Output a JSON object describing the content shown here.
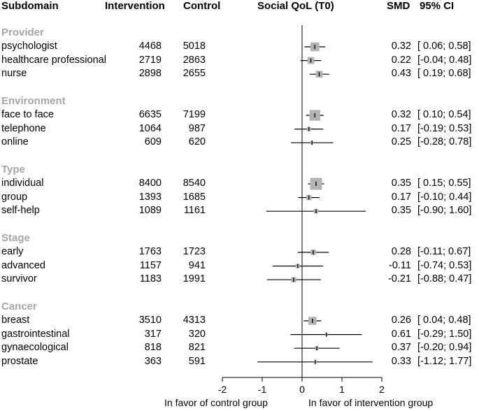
{
  "chart_data": {
    "type": "forest",
    "headers": {
      "subdomain": "Subdomain",
      "intervention": "Intervention",
      "control": "Control",
      "plot": "Social QoL (T0)",
      "smd": "SMD",
      "ci": "95% CI"
    },
    "xlim": [
      -2,
      2
    ],
    "ticks": [
      "-2",
      "-1",
      "0",
      "1",
      "2"
    ],
    "favor_left": "In favor of control group",
    "favor_right": "In favor of intervention group",
    "groups": [
      {
        "name": "Provider",
        "rows": [
          {
            "label": "psychologist",
            "intervention": "4468",
            "control": "5018",
            "smd": 0.32,
            "lo": 0.06,
            "hi": 0.58,
            "smd_text": "0.32",
            "ci_text": "[ 0.06; 0.58]"
          },
          {
            "label": "healthcare professional",
            "intervention": "2719",
            "control": "2863",
            "smd": 0.22,
            "lo": -0.04,
            "hi": 0.48,
            "smd_text": "0.22",
            "ci_text": "[-0.04; 0.48]"
          },
          {
            "label": "nurse",
            "intervention": "2898",
            "control": "2655",
            "smd": 0.43,
            "lo": 0.19,
            "hi": 0.68,
            "smd_text": "0.43",
            "ci_text": "[ 0.19; 0.68]"
          }
        ]
      },
      {
        "name": "Environment",
        "rows": [
          {
            "label": "face to face",
            "intervention": "6635",
            "control": "7199",
            "smd": 0.32,
            "lo": 0.1,
            "hi": 0.54,
            "smd_text": "0.32",
            "ci_text": "[ 0.10; 0.54]"
          },
          {
            "label": "telephone",
            "intervention": "1064",
            "control": "987",
            "smd": 0.17,
            "lo": -0.19,
            "hi": 0.53,
            "smd_text": "0.17",
            "ci_text": "[-0.19; 0.53]"
          },
          {
            "label": "online",
            "intervention": "609",
            "control": "620",
            "smd": 0.25,
            "lo": -0.28,
            "hi": 0.78,
            "smd_text": "0.25",
            "ci_text": "[-0.28; 0.78]"
          }
        ]
      },
      {
        "name": "Type",
        "rows": [
          {
            "label": "individual",
            "intervention": "8400",
            "control": "8540",
            "smd": 0.35,
            "lo": 0.15,
            "hi": 0.55,
            "smd_text": "0.35",
            "ci_text": "[ 0.15; 0.55]"
          },
          {
            "label": "group",
            "intervention": "1393",
            "control": "1685",
            "smd": 0.17,
            "lo": -0.1,
            "hi": 0.44,
            "smd_text": "0.17",
            "ci_text": "[-0.10; 0.44]"
          },
          {
            "label": "self-help",
            "intervention": "1089",
            "control": "1161",
            "smd": 0.35,
            "lo": -0.9,
            "hi": 1.6,
            "smd_text": "0.35",
            "ci_text": "[-0.90; 1.60]"
          }
        ]
      },
      {
        "name": "Stage",
        "rows": [
          {
            "label": "early",
            "intervention": "1763",
            "control": "1723",
            "smd": 0.28,
            "lo": -0.11,
            "hi": 0.67,
            "smd_text": "0.28",
            "ci_text": "[-0.11; 0.67]"
          },
          {
            "label": "advanced",
            "intervention": "1157",
            "control": "941",
            "smd": -0.11,
            "lo": -0.74,
            "hi": 0.53,
            "smd_text": "-0.11",
            "ci_text": "[-0.74; 0.53]"
          },
          {
            "label": "survivor",
            "intervention": "1183",
            "control": "1991",
            "smd": -0.21,
            "lo": -0.88,
            "hi": 0.47,
            "smd_text": "-0.21",
            "ci_text": "[-0.88; 0.47]"
          }
        ]
      },
      {
        "name": "Cancer",
        "rows": [
          {
            "label": "breast",
            "intervention": "3510",
            "control": "4313",
            "smd": 0.26,
            "lo": 0.04,
            "hi": 0.48,
            "smd_text": "0.26",
            "ci_text": "[ 0.04; 0.48]"
          },
          {
            "label": "gastrointestinal",
            "intervention": "317",
            "control": "320",
            "smd": 0.61,
            "lo": -0.29,
            "hi": 1.5,
            "smd_text": "0.61",
            "ci_text": "[-0.29; 1.50]"
          },
          {
            "label": "gynaecological",
            "intervention": "818",
            "control": "821",
            "smd": 0.37,
            "lo": -0.2,
            "hi": 0.94,
            "smd_text": "0.37",
            "ci_text": "[-0.20; 0.94]"
          },
          {
            "label": "prostate",
            "intervention": "363",
            "control": "591",
            "smd": 0.33,
            "lo": -1.12,
            "hi": 1.77,
            "smd_text": "0.33",
            "ci_text": "[-1.12; 1.77]"
          }
        ]
      }
    ]
  }
}
